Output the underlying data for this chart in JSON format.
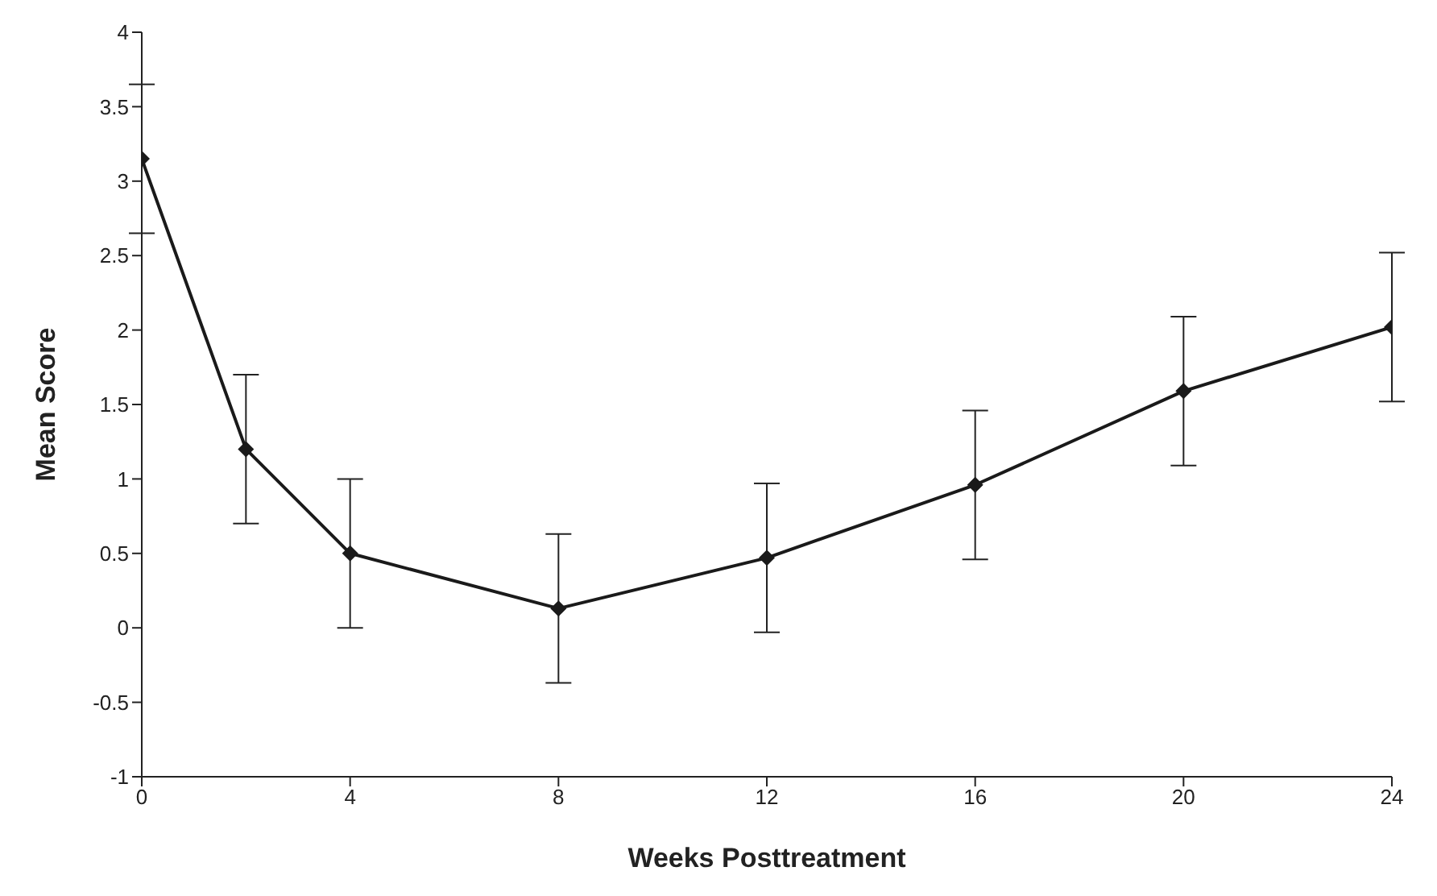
{
  "chart_data": {
    "type": "line",
    "xlabel": "Weeks Posttreatment",
    "ylabel": "Mean Score",
    "x": [
      0,
      2,
      4,
      8,
      12,
      16,
      20,
      24
    ],
    "series": [
      {
        "color": "#1a1a1a",
        "values": [
          3.15,
          1.2,
          0.5,
          0.13,
          0.47,
          0.96,
          1.59,
          2.02
        ],
        "errors": [
          0.5,
          0.5,
          0.5,
          0.5,
          0.5,
          0.5,
          0.5,
          0.5
        ]
      }
    ],
    "xlim": [
      0,
      24
    ],
    "xticks": [
      0,
      4,
      8,
      12,
      16,
      20,
      24
    ],
    "ylim": [
      -1,
      4
    ],
    "yticks": [
      -1,
      -0.5,
      0,
      0.5,
      1,
      1.5,
      2,
      2.5,
      3,
      3.5,
      4
    ],
    "grid": false,
    "legend": false,
    "marker": "diamond",
    "line_style": "solid"
  }
}
